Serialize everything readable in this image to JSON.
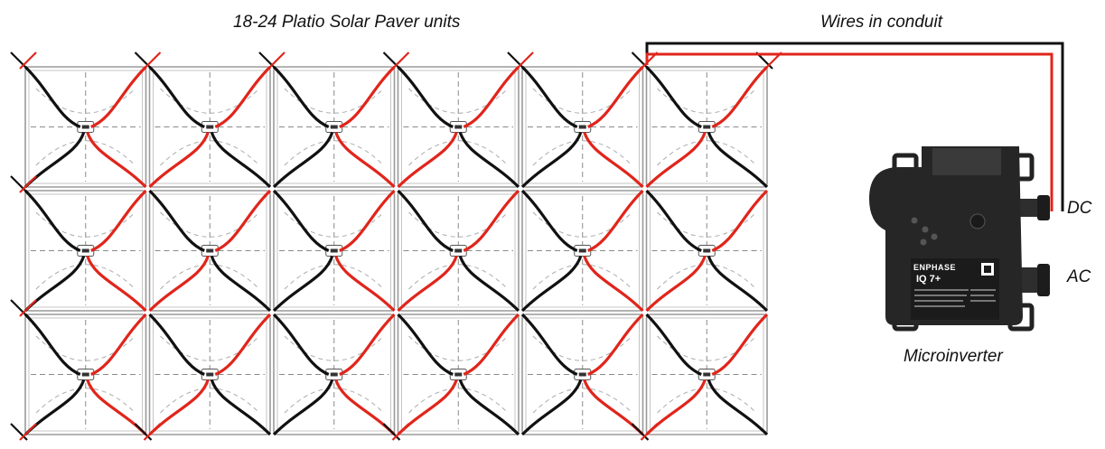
{
  "labels": {
    "pavers": "18-24 Platio Solar Paver units",
    "conduit": "Wires in conduit",
    "dc": "DC",
    "ac": "AC",
    "microinverter": "Microinverter"
  },
  "inverter": {
    "brand": "ENPHASE",
    "model": "IQ 7+"
  },
  "grid": {
    "rows": 3,
    "cols": 6
  },
  "colors": {
    "positive_wire": "#e0251b",
    "negative_wire": "#111111",
    "paver_outline": "#9a9a9a",
    "inverter_body": "#262626"
  }
}
